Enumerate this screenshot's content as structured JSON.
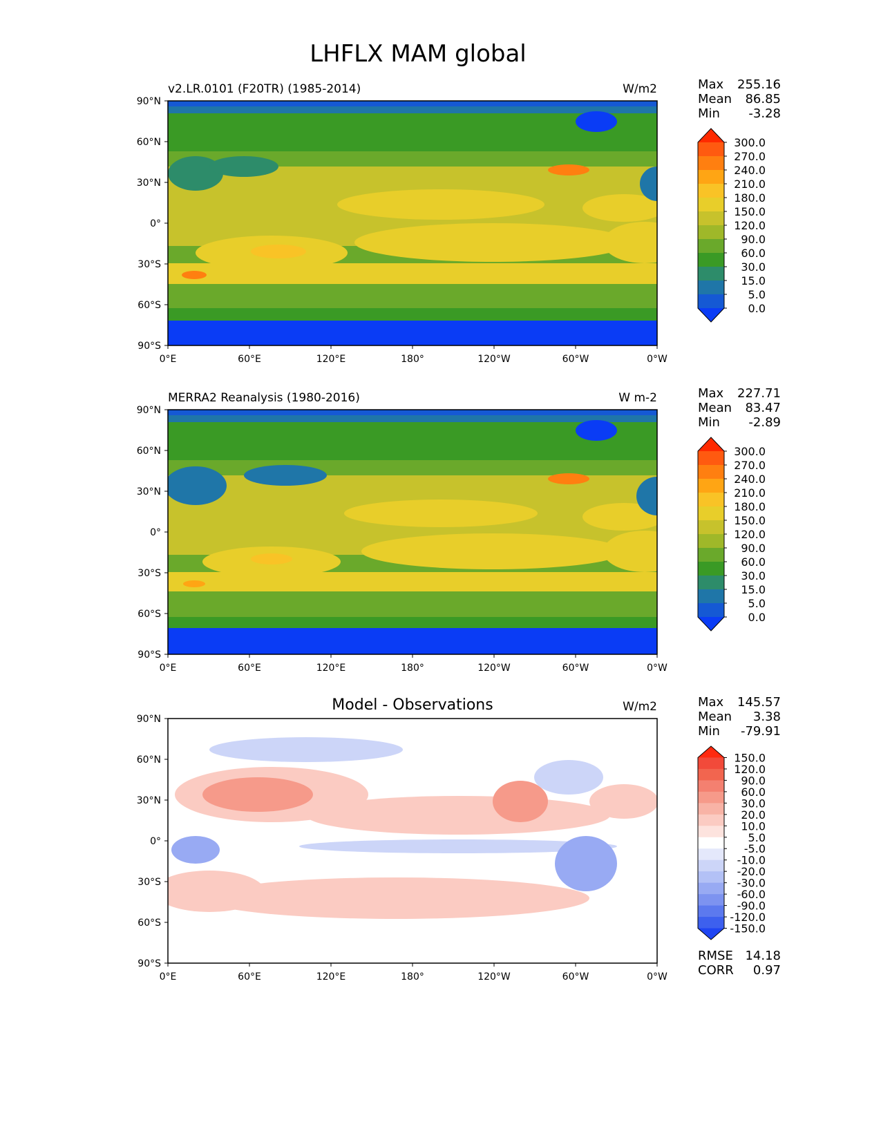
{
  "figure": {
    "title": "LHFLX MAM global"
  },
  "axes": {
    "lat_ticks": [
      "90°N",
      "60°N",
      "30°N",
      "0°",
      "30°S",
      "60°S",
      "90°S"
    ],
    "lon_ticks": [
      "0°E",
      "60°E",
      "120°E",
      "180°",
      "120°W",
      "60°W",
      "0°W"
    ]
  },
  "panels": [
    {
      "id": "model",
      "title_left": "v2.LR.0101 (F20TR) (1985-2014)",
      "title_center": "",
      "units": "W/m2",
      "stats": [
        {
          "label": "Max",
          "value": "255.16"
        },
        {
          "label": "Mean",
          "value": "86.85"
        },
        {
          "label": "Min",
          "value": "-3.28"
        }
      ],
      "colorbar": {
        "levels": [
          "300.0",
          "270.0",
          "240.0",
          "210.0",
          "180.0",
          "150.0",
          "120.0",
          "90.0",
          "60.0",
          "30.0",
          "15.0",
          "5.0",
          "0.0"
        ],
        "colors": [
          "#ff2a00",
          "#ff5a10",
          "#ff7f10",
          "#ffa514",
          "#f9c326",
          "#e8ce2a",
          "#c7c22c",
          "#9fb829",
          "#6aa92b",
          "#3a9a25",
          "#2d8c6a",
          "#1f76a8",
          "#1559d4",
          "#0a3cf5"
        ]
      },
      "regions": {
        "deep_ocean_high": "#e8ce2a",
        "subtropics": "#c7c22c",
        "midlat": "#6aa92b",
        "highlat": "#3a9a25",
        "polar": "#1559d4",
        "antarctic": "#0a3cf5",
        "hot": "#f9c326",
        "gulf": "#ff7f10"
      }
    },
    {
      "id": "obs",
      "title_left": "MERRA2 Reanalysis (1980-2016)",
      "title_center": "",
      "units": "W m-2",
      "stats": [
        {
          "label": "Max",
          "value": "227.71"
        },
        {
          "label": "Mean",
          "value": "83.47"
        },
        {
          "label": "Min",
          "value": "-2.89"
        }
      ],
      "colorbar": {
        "levels": [
          "300.0",
          "270.0",
          "240.0",
          "210.0",
          "180.0",
          "150.0",
          "120.0",
          "90.0",
          "60.0",
          "30.0",
          "15.0",
          "5.0",
          "0.0"
        ],
        "colors": [
          "#ff2a00",
          "#ff5a10",
          "#ff7f10",
          "#ffa514",
          "#f9c326",
          "#e8ce2a",
          "#c7c22c",
          "#9fb829",
          "#6aa92b",
          "#3a9a25",
          "#2d8c6a",
          "#1f76a8",
          "#1559d4",
          "#0a3cf5"
        ]
      },
      "regions": {
        "deep_ocean_high": "#e8ce2a",
        "subtropics": "#c7c22c",
        "midlat": "#6aa92b",
        "highlat": "#3a9a25",
        "polar": "#1559d4",
        "antarctic": "#0a3cf5",
        "hot": "#f9c326",
        "gulf": "#ff7f10"
      }
    },
    {
      "id": "diff",
      "title_left": "",
      "title_center": "Model - Observations",
      "units": "W/m2",
      "stats": [
        {
          "label": "Max",
          "value": "145.57"
        },
        {
          "label": "Mean",
          "value": "3.38"
        },
        {
          "label": "Min",
          "value": "-79.91"
        }
      ],
      "extra_stats": [
        {
          "label": "RMSE",
          "value": "14.18"
        },
        {
          "label": "CORR",
          "value": "0.97"
        }
      ],
      "colorbar": {
        "levels": [
          "150.0",
          "120.0",
          "90.0",
          "60.0",
          "30.0",
          "20.0",
          "10.0",
          "5.0",
          "-5.0",
          "-10.0",
          "-20.0",
          "-30.0",
          "-60.0",
          "-90.0",
          "-120.0",
          "-150.0"
        ],
        "colors": [
          "#ff2a10",
          "#f24a3a",
          "#f2654f",
          "#f48070",
          "#f69a8a",
          "#f8b3a6",
          "#fbcbc2",
          "#fde3de",
          "#ffffff",
          "#e4e8fb",
          "#ccd5f8",
          "#b3c1f6",
          "#98aaf3",
          "#7d93f0",
          "#5c79ee",
          "#3d60ee",
          "#1f45f2"
        ]
      },
      "regions": {
        "base": "#ffffff",
        "pos_light": "#fbcbc2",
        "pos_mid": "#f69a8a",
        "neg_light": "#ccd5f8",
        "neg_mid": "#98aaf3"
      }
    }
  ]
}
